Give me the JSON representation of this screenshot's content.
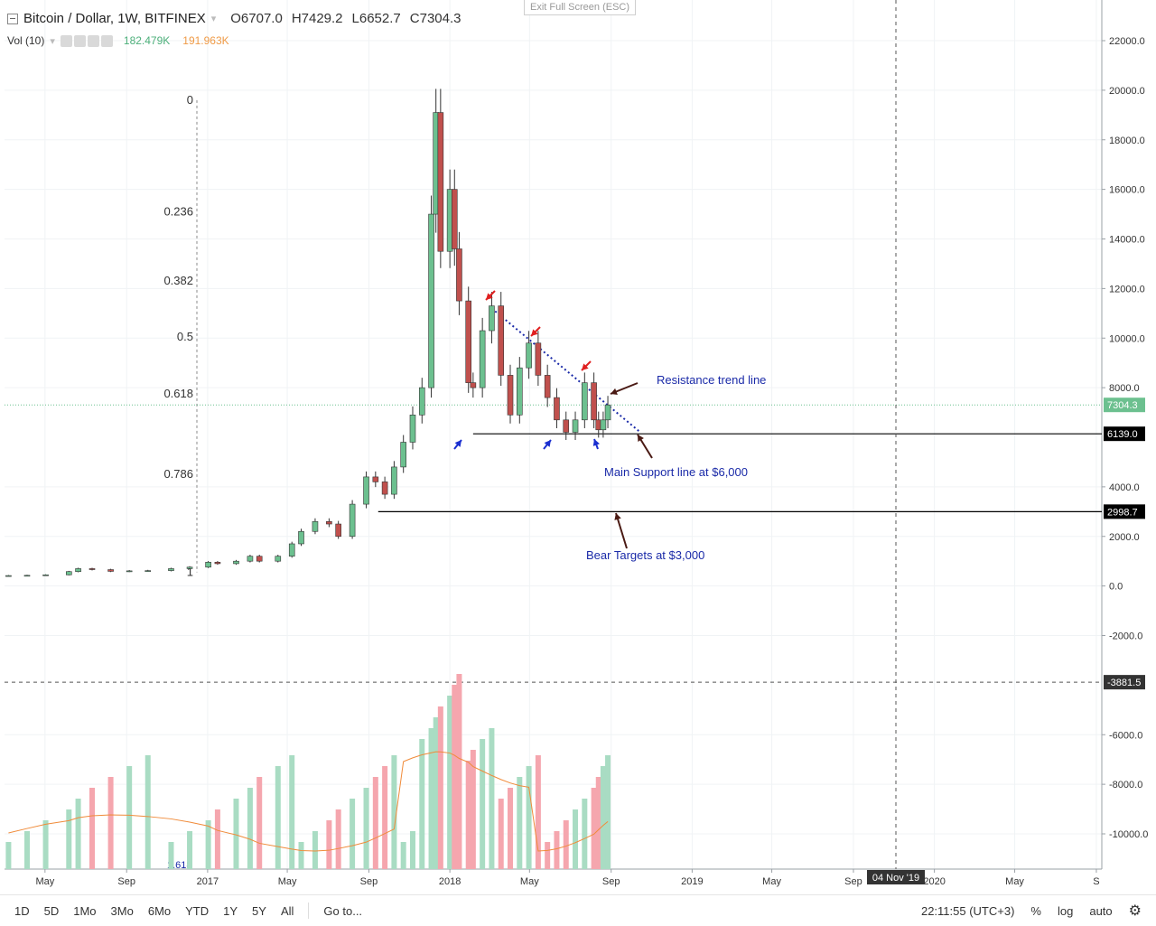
{
  "header": {
    "symbol": "Bitcoin / Dollar, 1W, BITFINEX",
    "open": "O6707.0",
    "high": "H7429.2",
    "low": "L6652.7",
    "close": "C7304.3",
    "vol_label": "Vol (10)",
    "vol_value": "182.479K",
    "vol_ma": "191.963K",
    "exit_label": "Exit Full Screen (ESC)"
  },
  "bottom": {
    "timeframes": [
      "1D",
      "5D",
      "1Mo",
      "3Mo",
      "6Mo",
      "YTD",
      "1Y",
      "5Y",
      "All"
    ],
    "goto": "Go to...",
    "clock": "22:11:55 (UTC+3)",
    "percent": "%",
    "log": "log",
    "auto": "auto"
  },
  "annotations": {
    "resistance": "Resistance trend line",
    "support": "Main Support line at $6,000",
    "bear": "Bear Targets at $3,000"
  },
  "colors": {
    "up": "#53b987",
    "down": "#eb4d5c",
    "up_body": "#6cc08f",
    "down_body": "#c0504d",
    "vol_up": "#a9dcc3",
    "vol_down": "#f5a6ae",
    "vol_ma": "#f08b3a",
    "trend": "#1a2aa8",
    "arrow_red": "#e02020",
    "arrow_blue": "#1a2fd0",
    "arrow_brown": "#4a1a14"
  },
  "chart_data": {
    "type": "candlestick",
    "title": "Bitcoin / Dollar, 1W, BITFINEX",
    "y_ticks": [
      "22000.0",
      "20000.0",
      "18000.0",
      "16000.0",
      "14000.0",
      "12000.0",
      "10000.0",
      "8000.0",
      "4000.0",
      "2000.0",
      "0.0",
      "-2000.0",
      "-6000.0",
      "-8000.0",
      "-10000.0"
    ],
    "ylim": [
      -11000,
      23600
    ],
    "x_ticks": [
      "May",
      "Sep",
      "2017",
      "May",
      "Sep",
      "2018",
      "May",
      "Sep",
      "2019",
      "May",
      "Sep",
      "2020",
      "May",
      "S"
    ],
    "x_tick_dates": [
      "2016-05-01",
      "2016-09-01",
      "2017-01-01",
      "2017-05-01",
      "2017-09-01",
      "2018-01-01",
      "2018-05-01",
      "2018-09-01",
      "2019-01-01",
      "2019-05-01",
      "2019-09-01",
      "2020-01-01",
      "2020-05-01",
      "2020-09-01"
    ],
    "price_labels": [
      {
        "value": 7304.3,
        "text": "7304.3",
        "kind": "last"
      },
      {
        "value": 6139.0,
        "text": "6139.0",
        "kind": "line"
      },
      {
        "value": 2998.7,
        "text": "2998.7",
        "kind": "line"
      },
      {
        "value": -3881.5,
        "text": "-3881.5",
        "kind": "crosshair"
      }
    ],
    "crosshair_date_label": "04 Nov '19",
    "crosshair_date": "2019-11-04",
    "fib_levels": [
      {
        "label": "0",
        "value": 19600
      },
      {
        "label": "0.236",
        "value": 15100
      },
      {
        "label": "0.382",
        "value": 12300
      },
      {
        "label": "0.5",
        "value": 10050
      },
      {
        "label": "0.618",
        "value": 7750
      },
      {
        "label": "0.786",
        "value": 4500
      },
      {
        "label": "1",
        "value": 550
      }
    ],
    "support_line": {
      "value": 6139.0,
      "from": "2018-02-05",
      "to": "2020-10-01"
    },
    "bear_line": {
      "value": 2998.7,
      "from": "2017-09-15",
      "to": "2020-10-01"
    },
    "trend_line": {
      "from": {
        "date": "2018-03-05",
        "value": 11200
      },
      "to": {
        "date": "2018-10-15",
        "value": 6200
      }
    },
    "candles": [
      [
        6707.0,
        7429.2,
        6652.7,
        7304.3
      ]
    ]
  }
}
